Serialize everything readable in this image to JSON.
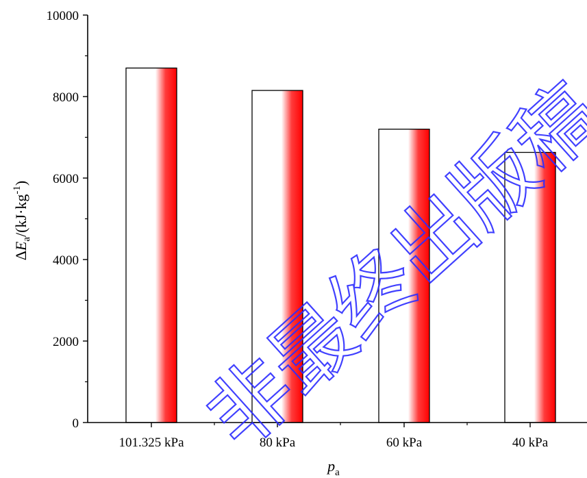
{
  "chart_data": {
    "type": "bar",
    "categories": [
      "101.325 kPa",
      "80 kPa",
      "60 kPa",
      "40 kPa"
    ],
    "values": [
      8700,
      8150,
      7200,
      6630
    ],
    "xlabel": {
      "main": "p",
      "sub": "a"
    },
    "ylabel": {
      "delta": "Δ",
      "var": "E",
      "sub": "a",
      "unit_open": "/(kJ·kg",
      "sup": "-1",
      "unit_close": ")"
    },
    "yticks": [
      "0",
      "2000",
      "4000",
      "6000",
      "8000",
      "10000"
    ],
    "ylim": [
      0,
      10000
    ],
    "grid": false,
    "bar_gradient": [
      "#ffffff",
      "#ff0000"
    ],
    "bar_outline": "#000000"
  },
  "watermark": {
    "text": "非最终出版稿",
    "color": "#2c2cff"
  }
}
